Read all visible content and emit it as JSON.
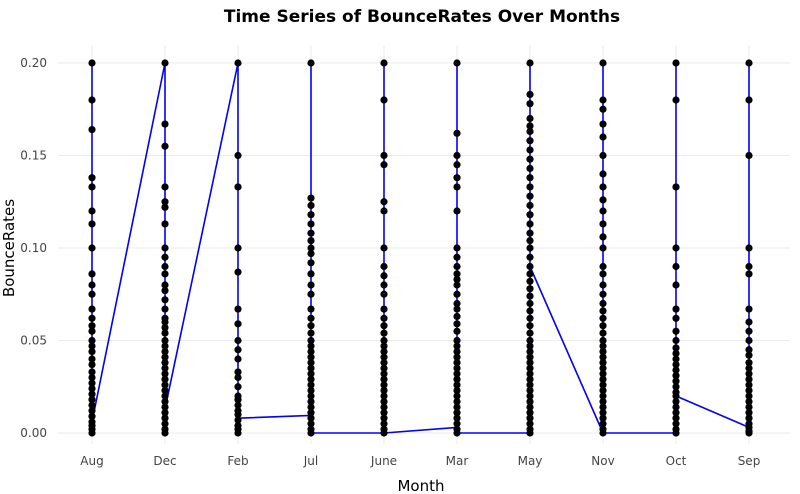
{
  "chart_data": {
    "type": "line",
    "title": "Time Series of BounceRates Over Months",
    "xlabel": "Month",
    "ylabel": "BounceRates",
    "categories": [
      "Aug",
      "Dec",
      "Feb",
      "Jul",
      "June",
      "Mar",
      "May",
      "Nov",
      "Oct",
      "Sep"
    ],
    "ylim": [
      0,
      0.2
    ],
    "yticks": [
      0.0,
      0.05,
      0.1,
      0.15,
      0.2
    ],
    "ytick_labels": [
      "0.00",
      "0.05",
      "0.10",
      "0.15",
      "0.20"
    ],
    "grid": true,
    "line_color": "#0000ff",
    "point_color": "#000000",
    "line_path": [
      {
        "x": "Aug",
        "y": 0.0
      },
      {
        "x": "Aug",
        "y": 0.2
      },
      {
        "x": "Aug",
        "y": 0.006
      },
      {
        "x": "Dec",
        "y": 0.2
      },
      {
        "x": "Dec",
        "y": 0.013
      },
      {
        "x": "Feb",
        "y": 0.2
      },
      {
        "x": "Feb",
        "y": 0.008
      },
      {
        "x": "Jul",
        "y": 0.0095
      },
      {
        "x": "Jul",
        "y": 0.2
      },
      {
        "x": "Jul",
        "y": 0.0
      },
      {
        "x": "June",
        "y": 0.0
      },
      {
        "x": "June",
        "y": 0.2
      },
      {
        "x": "June",
        "y": 0.0
      },
      {
        "x": "Mar",
        "y": 0.003
      },
      {
        "x": "Mar",
        "y": 0.2
      },
      {
        "x": "Mar",
        "y": 0.0
      },
      {
        "x": "May",
        "y": 0.0
      },
      {
        "x": "May",
        "y": 0.2
      },
      {
        "x": "May",
        "y": 0.09
      },
      {
        "x": "Nov",
        "y": 0.0
      },
      {
        "x": "Nov",
        "y": 0.2
      },
      {
        "x": "Nov",
        "y": 0.0
      },
      {
        "x": "Oct",
        "y": 0.0
      },
      {
        "x": "Oct",
        "y": 0.2
      },
      {
        "x": "Oct",
        "y": 0.02
      },
      {
        "x": "Sep",
        "y": 0.003
      },
      {
        "x": "Sep",
        "y": 0.2
      },
      {
        "x": "Sep",
        "y": 0.0
      }
    ],
    "points": {
      "Aug": [
        0.2,
        0.18,
        0.164,
        0.138,
        0.133,
        0.12,
        0.113,
        0.1,
        0.086,
        0.08,
        0.075,
        0.067,
        0.062,
        0.058,
        0.055,
        0.05,
        0.047,
        0.044,
        0.04,
        0.037,
        0.033,
        0.03,
        0.027,
        0.024,
        0.021,
        0.018,
        0.015,
        0.012,
        0.009,
        0.006,
        0.004,
        0.002,
        0.0
      ],
      "Dec": [
        0.2,
        0.167,
        0.155,
        0.133,
        0.125,
        0.122,
        0.113,
        0.1,
        0.095,
        0.09,
        0.086,
        0.08,
        0.077,
        0.072,
        0.067,
        0.062,
        0.06,
        0.057,
        0.054,
        0.05,
        0.047,
        0.044,
        0.041,
        0.038,
        0.035,
        0.032,
        0.029,
        0.026,
        0.023,
        0.02,
        0.017,
        0.014,
        0.011,
        0.008,
        0.005,
        0.002,
        0.0
      ],
      "Feb": [
        0.2,
        0.15,
        0.133,
        0.1,
        0.087,
        0.067,
        0.059,
        0.05,
        0.045,
        0.04,
        0.033,
        0.03,
        0.025,
        0.02,
        0.018,
        0.015,
        0.012,
        0.01,
        0.007,
        0.004,
        0.002,
        0.0
      ],
      "Jul": [
        0.2,
        0.127,
        0.123,
        0.118,
        0.113,
        0.108,
        0.104,
        0.1,
        0.097,
        0.092,
        0.086,
        0.08,
        0.075,
        0.067,
        0.062,
        0.058,
        0.054,
        0.05,
        0.047,
        0.044,
        0.041,
        0.038,
        0.035,
        0.032,
        0.029,
        0.026,
        0.023,
        0.02,
        0.017,
        0.014,
        0.011,
        0.008,
        0.005,
        0.002,
        0.0
      ],
      "June": [
        0.2,
        0.18,
        0.15,
        0.145,
        0.125,
        0.12,
        0.1,
        0.09,
        0.085,
        0.08,
        0.075,
        0.067,
        0.062,
        0.058,
        0.054,
        0.05,
        0.047,
        0.044,
        0.041,
        0.038,
        0.035,
        0.032,
        0.029,
        0.026,
        0.023,
        0.02,
        0.017,
        0.014,
        0.011,
        0.008,
        0.005,
        0.002,
        0.0
      ],
      "Mar": [
        0.2,
        0.162,
        0.15,
        0.145,
        0.138,
        0.133,
        0.12,
        0.1,
        0.095,
        0.09,
        0.086,
        0.083,
        0.08,
        0.075,
        0.07,
        0.067,
        0.063,
        0.059,
        0.055,
        0.05,
        0.047,
        0.044,
        0.041,
        0.038,
        0.035,
        0.032,
        0.029,
        0.026,
        0.023,
        0.02,
        0.017,
        0.014,
        0.011,
        0.008,
        0.005,
        0.002,
        0.0
      ],
      "May": [
        0.2,
        0.183,
        0.178,
        0.17,
        0.166,
        0.163,
        0.158,
        0.153,
        0.148,
        0.143,
        0.138,
        0.133,
        0.128,
        0.123,
        0.118,
        0.113,
        0.108,
        0.104,
        0.1,
        0.095,
        0.09,
        0.086,
        0.082,
        0.078,
        0.074,
        0.07,
        0.066,
        0.062,
        0.058,
        0.054,
        0.05,
        0.047,
        0.044,
        0.041,
        0.038,
        0.035,
        0.032,
        0.029,
        0.026,
        0.023,
        0.02,
        0.017,
        0.014,
        0.011,
        0.008,
        0.005,
        0.002,
        0.0
      ],
      "Nov": [
        0.2,
        0.18,
        0.175,
        0.167,
        0.16,
        0.15,
        0.14,
        0.133,
        0.126,
        0.12,
        0.113,
        0.106,
        0.1,
        0.09,
        0.086,
        0.08,
        0.075,
        0.07,
        0.066,
        0.062,
        0.058,
        0.054,
        0.05,
        0.047,
        0.044,
        0.041,
        0.038,
        0.035,
        0.032,
        0.029,
        0.026,
        0.023,
        0.02,
        0.017,
        0.014,
        0.011,
        0.008,
        0.005,
        0.002,
        0.0
      ],
      "Oct": [
        0.2,
        0.18,
        0.133,
        0.1,
        0.09,
        0.08,
        0.067,
        0.062,
        0.055,
        0.05,
        0.046,
        0.043,
        0.04,
        0.037,
        0.034,
        0.031,
        0.028,
        0.025,
        0.022,
        0.02,
        0.017,
        0.014,
        0.011,
        0.008,
        0.005,
        0.002,
        0.0
      ],
      "Sep": [
        0.2,
        0.18,
        0.15,
        0.1,
        0.09,
        0.086,
        0.067,
        0.06,
        0.055,
        0.05,
        0.045,
        0.042,
        0.038,
        0.035,
        0.032,
        0.029,
        0.026,
        0.023,
        0.02,
        0.017,
        0.014,
        0.011,
        0.008,
        0.005,
        0.003,
        0.001,
        0.0
      ]
    }
  }
}
